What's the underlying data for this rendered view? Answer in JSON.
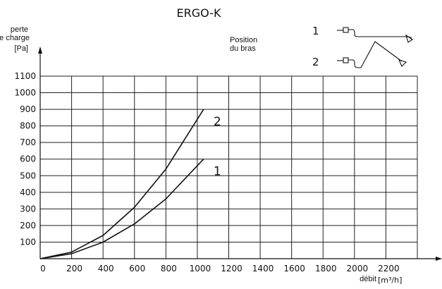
{
  "chart_data": {
    "type": "line",
    "title": "ERGO-K",
    "ylabel": [
      "perte",
      "de charge",
      "[Pa]"
    ],
    "xlabel": "débit",
    "xunit": "[m³/h]",
    "xlim": [
      0,
      2400
    ],
    "ylim": [
      0,
      1100
    ],
    "xticks": [
      "0",
      "200",
      "400",
      "600",
      "800",
      "1000",
      "1200",
      "1400",
      "1600",
      "1800",
      "2000",
      "2200"
    ],
    "yticks": [
      "100",
      "200",
      "300",
      "400",
      "500",
      "600",
      "700",
      "800",
      "900",
      "1000",
      "1100"
    ],
    "grid": true,
    "legend": {
      "title": [
        "Position",
        "du bras"
      ],
      "entries": [
        {
          "label": "1",
          "description": "bras droit"
        },
        {
          "label": "2",
          "description": "bras plié"
        }
      ]
    },
    "series": [
      {
        "name": "1",
        "x": [
          0,
          200,
          400,
          600,
          800,
          1000,
          1040
        ],
        "y": [
          0,
          30,
          100,
          210,
          360,
          560,
          600
        ]
      },
      {
        "name": "2",
        "x": [
          0,
          200,
          400,
          600,
          800,
          1000,
          1040
        ],
        "y": [
          0,
          40,
          140,
          310,
          540,
          840,
          900
        ]
      }
    ],
    "line_color": "#111111",
    "grid_color": "#222222"
  }
}
